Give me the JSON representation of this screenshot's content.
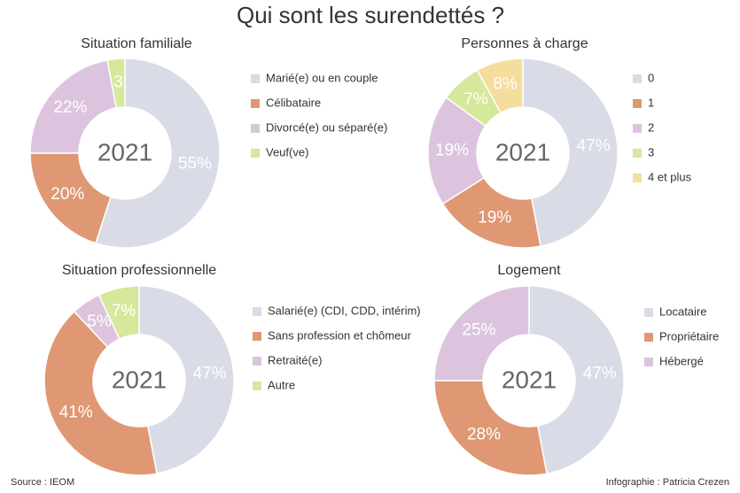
{
  "title": "Qui sont les surendettés ?",
  "source": "Source : IEOM",
  "credit": "Infographie : Patricia Crezen",
  "chart_data": [
    {
      "type": "pie",
      "title": "Situation familiale",
      "center_label": "2021",
      "categories": [
        "Marié(e) ou en couple",
        "Célibataire",
        "Divorcé(e) ou séparé(e)",
        "Veuf(ve)"
      ],
      "values": [
        55,
        20,
        22,
        3
      ],
      "value_labels": [
        "55%",
        "20%",
        "22%",
        "3"
      ],
      "colors": [
        "#d9dbe7",
        "#df9873",
        "#dcc4de",
        "#d6e89c"
      ]
    },
    {
      "type": "pie",
      "title": "Personnes à charge",
      "center_label": "2021",
      "categories": [
        "0",
        "1",
        "2",
        "3",
        "4 et plus"
      ],
      "values": [
        47,
        19,
        19,
        7,
        8
      ],
      "value_labels": [
        "47%",
        "19%",
        "19%",
        "7%",
        "8%"
      ],
      "colors": [
        "#d9dbe7",
        "#df9873",
        "#dcc4de",
        "#d6e89c",
        "#f5dd9e"
      ]
    },
    {
      "type": "pie",
      "title": "Situation professionnelle",
      "center_label": "2021",
      "categories": [
        "Salarié(e) (CDI, CDD, intérim)",
        "Sans profession et chômeur",
        "Retraité(e)",
        "Autre"
      ],
      "values": [
        47,
        41,
        5,
        7
      ],
      "value_labels": [
        "47%",
        "41%",
        "5%",
        "7%"
      ],
      "colors": [
        "#d9dbe7",
        "#df9873",
        "#dcc4de",
        "#d6e89c"
      ]
    },
    {
      "type": "pie",
      "title": "Logement",
      "center_label": "2021",
      "categories": [
        "Locataire",
        "Propriétaire",
        "Hébergé"
      ],
      "values": [
        47,
        28,
        25
      ],
      "value_labels": [
        "47%",
        "28%",
        "25%"
      ],
      "colors": [
        "#d9dbe7",
        "#df9873",
        "#dcc4de"
      ]
    }
  ]
}
